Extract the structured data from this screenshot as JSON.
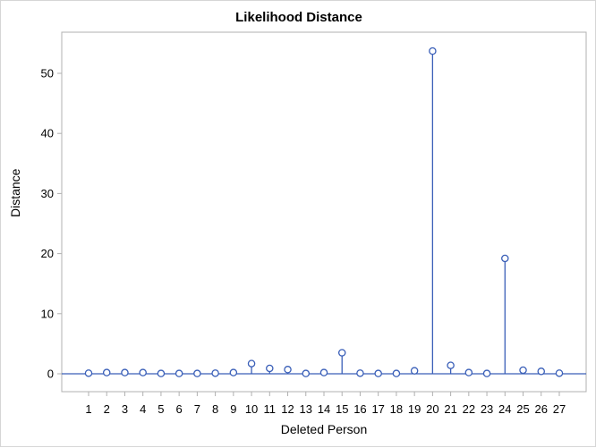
{
  "chart_data": {
    "type": "needle",
    "title": "Likelihood Distance",
    "xlabel": "Deleted Person",
    "ylabel": "Distance",
    "categories": [
      "1",
      "2",
      "3",
      "4",
      "5",
      "6",
      "7",
      "8",
      "9",
      "10",
      "11",
      "12",
      "13",
      "14",
      "15",
      "16",
      "17",
      "18",
      "19",
      "20",
      "21",
      "22",
      "23",
      "24",
      "25",
      "26",
      "27"
    ],
    "values": [
      0.1,
      0.2,
      0.2,
      0.2,
      0.05,
      0.05,
      0.05,
      0.1,
      0.2,
      1.7,
      0.9,
      0.7,
      0.05,
      0.2,
      3.5,
      0.1,
      0.05,
      0.05,
      0.5,
      53.7,
      1.4,
      0.2,
      0.05,
      19.2,
      0.6,
      0.4,
      0.1
    ],
    "yticks": [
      0,
      10,
      20,
      30,
      40,
      50
    ],
    "ylim": [
      -3,
      56.5
    ],
    "grid": false,
    "legend": null,
    "marker": "open-circle",
    "reference_line": 0,
    "colors": {
      "series": "#3a5fb8",
      "frame": "#b0b0b0",
      "text": "#000000"
    }
  },
  "labels": {
    "title": "Likelihood Distance",
    "xlabel": "Deleted Person",
    "ylabel": "Distance"
  }
}
